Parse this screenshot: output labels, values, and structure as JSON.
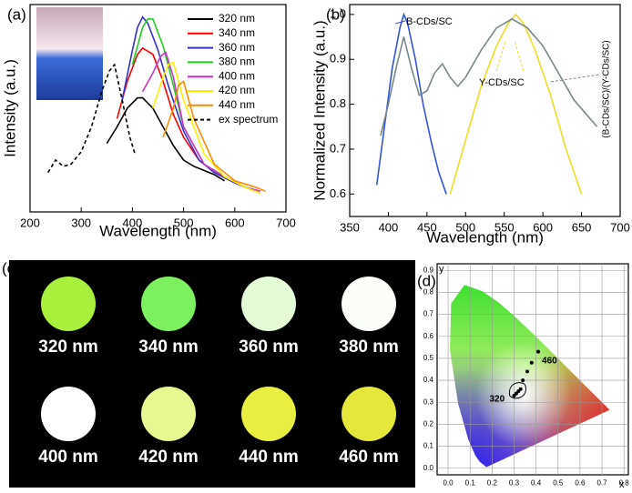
{
  "chart_data": [
    {
      "type": "line",
      "panel_label": "(a)",
      "xlabel": "Wavelength (nm)",
      "ylabel": "Intensity (a.u.)",
      "xlim": [
        200,
        700
      ],
      "xticks": [
        200,
        300,
        400,
        500,
        600,
        700
      ],
      "ylim": [
        0,
        1
      ],
      "series": [
        {
          "name": "320 nm",
          "color": "#000000",
          "x": [
            350,
            370,
            390,
            410,
            420,
            440,
            460,
            480,
            500,
            520,
            540,
            560,
            580
          ],
          "values": [
            0.33,
            0.41,
            0.5,
            0.55,
            0.55,
            0.5,
            0.41,
            0.32,
            0.25,
            0.22,
            0.2,
            0.18,
            0.15
          ]
        },
        {
          "name": "340 nm",
          "color": "#ff0000",
          "x": [
            370,
            390,
            410,
            420,
            440,
            460,
            480,
            500,
            530,
            560,
            600,
            620
          ],
          "values": [
            0.45,
            0.63,
            0.76,
            0.79,
            0.76,
            0.63,
            0.47,
            0.36,
            0.25,
            0.19,
            0.14,
            0.12
          ]
        },
        {
          "name": "360 nm",
          "color": "#3333cc",
          "x": [
            380,
            400,
            410,
            420,
            430,
            450,
            470,
            500,
            530,
            560,
            600,
            640
          ],
          "values": [
            0.54,
            0.78,
            0.89,
            0.94,
            0.91,
            0.78,
            0.61,
            0.39,
            0.25,
            0.19,
            0.14,
            0.1
          ]
        },
        {
          "name": "380 nm",
          "color": "#22cc22",
          "x": [
            400,
            420,
            430,
            440,
            460,
            480,
            500,
            540,
            580,
            620,
            650
          ],
          "values": [
            0.71,
            0.89,
            0.93,
            0.93,
            0.8,
            0.61,
            0.41,
            0.23,
            0.17,
            0.12,
            0.09
          ]
        },
        {
          "name": "400 nm",
          "color": "#cc33cc",
          "x": [
            420,
            440,
            455,
            465,
            480,
            500,
            540,
            580,
            620,
            650
          ],
          "values": [
            0.58,
            0.67,
            0.75,
            0.77,
            0.65,
            0.41,
            0.23,
            0.17,
            0.12,
            0.1
          ]
        },
        {
          "name": "420 nm",
          "color": "#ffee00",
          "x": [
            440,
            460,
            470,
            480,
            500,
            540,
            580,
            620,
            650
          ],
          "values": [
            0.5,
            0.65,
            0.71,
            0.72,
            0.54,
            0.28,
            0.17,
            0.12,
            0.09
          ]
        },
        {
          "name": "440 nm",
          "color": "#ff8800",
          "x": [
            460,
            480,
            490,
            500,
            520,
            560,
            600,
            640,
            660
          ],
          "values": [
            0.36,
            0.5,
            0.61,
            0.63,
            0.45,
            0.23,
            0.15,
            0.12,
            0.1
          ]
        },
        {
          "name": "ex spectrum",
          "color": "#000000",
          "dashed": true,
          "x": [
            235,
            250,
            265,
            280,
            300,
            320,
            340,
            355,
            365,
            380,
            395,
            405
          ],
          "values": [
            0.19,
            0.25,
            0.22,
            0.23,
            0.29,
            0.41,
            0.58,
            0.68,
            0.71,
            0.54,
            0.36,
            0.28
          ]
        }
      ]
    },
    {
      "type": "line",
      "panel_label": "(b)",
      "xlabel": "Wavelength (nm)",
      "ylabel": "Normalized Intensity (a.u.)",
      "xlim": [
        350,
        700
      ],
      "xticks": [
        350,
        400,
        450,
        500,
        550,
        600,
        650,
        700
      ],
      "ylim": [
        0.55,
        1.022
      ],
      "yticks": [
        0.6,
        0.7,
        0.8,
        0.9,
        {
          "value": 1,
          "label": "1.0"
        }
      ],
      "series": [
        {
          "name": "B-CDs/SC",
          "color": "#3355dd",
          "x": [
            385,
            395,
            405,
            415,
            420,
            425,
            435,
            445,
            455,
            465,
            475
          ],
          "values": [
            0.62,
            0.75,
            0.88,
            0.97,
            1.0,
            0.98,
            0.9,
            0.8,
            0.72,
            0.65,
            0.6
          ]
        },
        {
          "name": "Y-CDs/SC",
          "color": "#eedd22",
          "x": [
            480,
            500,
            520,
            540,
            555,
            565,
            575,
            590,
            610,
            630,
            650
          ],
          "values": [
            0.6,
            0.72,
            0.84,
            0.93,
            0.98,
            1.0,
            0.98,
            0.92,
            0.82,
            0.7,
            0.6
          ]
        },
        {
          "name": "(B-CDs/SC)/(Y-CDs/SC)",
          "color": "#778888",
          "x": [
            390,
            400,
            410,
            420,
            430,
            440,
            450,
            460,
            470,
            480,
            490,
            500,
            520,
            540,
            560,
            580,
            600,
            620,
            640,
            660,
            670
          ],
          "values": [
            0.73,
            0.8,
            0.88,
            0.95,
            0.88,
            0.82,
            0.83,
            0.87,
            0.89,
            0.86,
            0.84,
            0.86,
            0.92,
            0.97,
            0.99,
            0.97,
            0.93,
            0.87,
            0.81,
            0.77,
            0.75
          ]
        }
      ]
    },
    {
      "type": "scatter",
      "panel_label": "(d)",
      "xlabel": "x",
      "ylabel": "y",
      "xlim": [
        -0.05,
        0.82
      ],
      "ylim": [
        -0.03,
        0.93
      ],
      "grid": true,
      "xticks": [
        {
          "value": 0,
          "label": "0.0"
        },
        0.1,
        0.2,
        0.3,
        0.4,
        0.5,
        0.6,
        0.7,
        0.8
      ],
      "yticks": [
        {
          "value": 0,
          "label": "0.0"
        },
        0.1,
        0.2,
        0.3,
        0.4,
        0.5,
        0.6,
        0.7,
        0.8,
        0.9
      ],
      "color": "#000000",
      "x": [
        0.3,
        0.31,
        0.32,
        0.33,
        0.34,
        0.36,
        0.38,
        0.41
      ],
      "values": [
        0.33,
        0.34,
        0.35,
        0.36,
        0.4,
        0.44,
        0.48,
        0.53
      ],
      "annotations": [
        "320",
        "460"
      ]
    }
  ],
  "swatches": {
    "panel_label": "(c)",
    "items": [
      {
        "label": "320 nm",
        "color": "#a8f03c"
      },
      {
        "label": "340 nm",
        "color": "#7df060"
      },
      {
        "label": "360 nm",
        "color": "#e4fbd8"
      },
      {
        "label": "380 nm",
        "color": "#fbfdf8"
      },
      {
        "label": "400 nm",
        "color": "#ffffff"
      },
      {
        "label": "420 nm",
        "color": "#e8f890"
      },
      {
        "label": "440 nm",
        "color": "#e9ef40"
      },
      {
        "label": "460 nm",
        "color": "#e5e83a"
      }
    ]
  }
}
